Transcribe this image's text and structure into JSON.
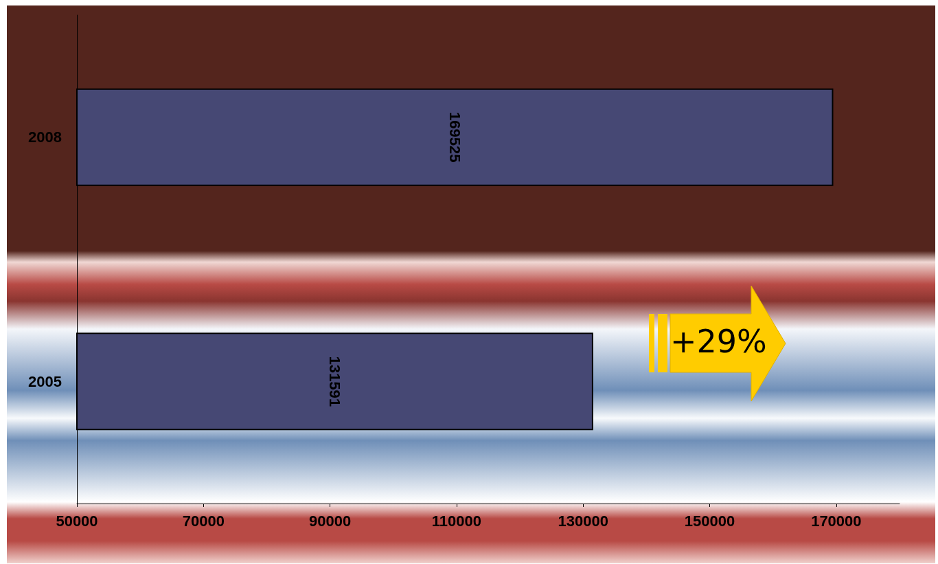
{
  "chart_data": {
    "type": "bar",
    "orientation": "horizontal",
    "categories": [
      "2008",
      "2005"
    ],
    "values": [
      169525,
      131591
    ],
    "color": "#464874",
    "data_labels": true,
    "xlim": [
      50000,
      180000
    ],
    "xticks": [
      50000,
      70000,
      90000,
      110000,
      130000,
      150000,
      170000
    ],
    "grid": false,
    "annotations": [
      "+29%"
    ]
  }
}
